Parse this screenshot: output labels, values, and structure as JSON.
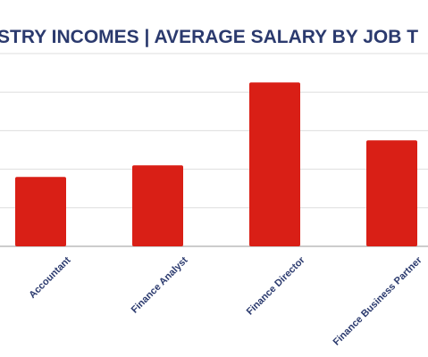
{
  "chart_data": {
    "type": "bar",
    "title": "STRY INCOMES | AVERAGE SALARY BY JOB T",
    "categories": [
      "Accountant",
      "Finance Analyst",
      "Finance Director",
      "Finance Business Partner"
    ],
    "values": [
      1.8,
      2.1,
      4.25,
      2.75
    ],
    "color": "#d91f16",
    "ylim": [
      0,
      5
    ],
    "yticks": [
      0,
      1,
      2,
      3,
      4,
      5
    ],
    "grid": true
  }
}
